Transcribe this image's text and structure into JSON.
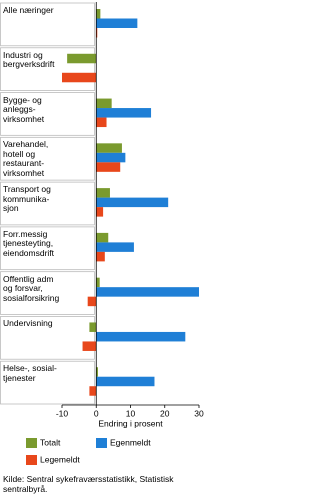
{
  "chart_data": {
    "type": "hbar",
    "categories": [
      "Alle næringer",
      "Industri og\nbergverksdrift",
      "Bygge- og\nanleggs-\nvirksomhet",
      "Varehandel,\nhotell og\nrestaurant-\nvirksomhet",
      "Transport og\nkommunika-\nsjon",
      "Forr.messig\ntjenesteyting,\neiendomsdrift",
      "Offentlig adm\nog forsvar,\nsosialforsikring",
      "Undervisning",
      "Helse-, sosial-\ntjenester"
    ],
    "series": [
      {
        "name": "Totalt",
        "color": "#7a9a2e",
        "values": [
          1.2,
          -8.5,
          4.5,
          7.5,
          4,
          3.5,
          1,
          -2,
          0.5
        ]
      },
      {
        "name": "Egenmeldt",
        "color": "#1f7fd6",
        "values": [
          12,
          0,
          16,
          8.5,
          21,
          11,
          30,
          26,
          17
        ]
      },
      {
        "name": "Legemeldt",
        "color": "#e8471b",
        "values": [
          0.3,
          -10,
          3,
          7,
          2,
          2.5,
          -2.5,
          -4,
          -2
        ]
      }
    ],
    "xlim": [
      -10,
      30
    ],
    "xticks": [
      -10,
      0,
      10,
      20,
      30
    ],
    "x_label": "Endring i prosent",
    "source": "Kilde: Sentral sykefraværsstatistikk, Statistisk\nsentralbyrå."
  }
}
